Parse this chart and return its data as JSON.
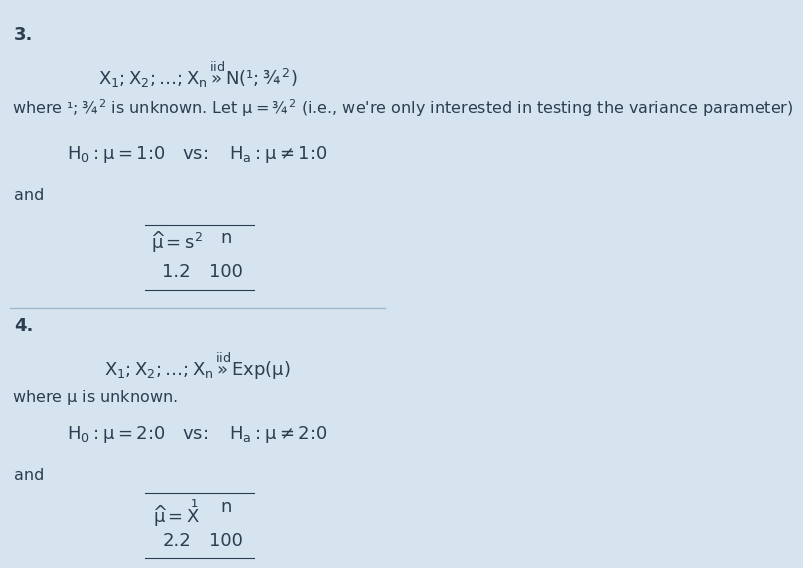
{
  "bg_color": "#d6e4f0",
  "divider_color": "#a0b8cc",
  "text_color": "#2c3e50",
  "fig_width": 6.56,
  "fig_height": 5.54,
  "section3": {
    "number": "3.",
    "distribution": "$X_1, X_2, \\ldots, X_n \\overset{\\mathrm{iid}}{\\sim} N(\\mu, \\sigma^2)$",
    "where_text": "where $\\mu, \\sigma^2$ is unknown. Let $\\theta = \\sigma^2$ (i.e., we're only interested in testing the variance parameter)",
    "hypothesis": "$H_0 : \\theta = 1.0 \\quad vs. \\quad H_a : \\theta \\neq 1.0$",
    "and_text": "and",
    "estimator_label": "$\\hat{\\theta} = s^2$",
    "n_label": "$n$",
    "estimator_value": "1.2",
    "n_value": "100"
  },
  "section4": {
    "number": "4.",
    "distribution": "$X_1, X_2, \\ldots, X_n \\overset{\\mathrm{iid}}{\\sim} \\mathrm{Exp}(\\theta)$",
    "where_text": "where $\\theta$ is unknown.",
    "hypothesis": "$H_0 : \\theta = 2.0 \\quad vs. \\quad H_a : \\theta \\neq 2.0$",
    "and_text": "and",
    "estimator_label": "$\\hat{\\theta} = \\bar{X}$",
    "n_label": "$n$",
    "estimator_value": "2.2",
    "n_value": "100"
  }
}
